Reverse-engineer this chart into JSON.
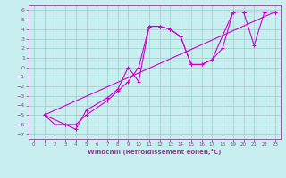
{
  "xlabel": "Windchill (Refroidissement éolien,°C)",
  "xlim": [
    -0.5,
    23.5
  ],
  "ylim": [
    -7.5,
    6.5
  ],
  "xticks": [
    0,
    1,
    2,
    3,
    4,
    5,
    6,
    7,
    8,
    9,
    10,
    11,
    12,
    13,
    14,
    15,
    16,
    17,
    18,
    19,
    20,
    21,
    22,
    23
  ],
  "yticks": [
    -7,
    -6,
    -5,
    -4,
    -3,
    -2,
    -1,
    0,
    1,
    2,
    3,
    4,
    5,
    6
  ],
  "bg_color": "#c8eef0",
  "line_color": "#cc00cc",
  "grid_color": "#99cccc",
  "line1_x": [
    1,
    2,
    3,
    4,
    5,
    7,
    8,
    9,
    10,
    11,
    12,
    13,
    14,
    15,
    16,
    17,
    19,
    20,
    21,
    22,
    23
  ],
  "line1_y": [
    -5,
    -6,
    -6,
    -6,
    -5,
    -3.5,
    -2.5,
    -1.5,
    0,
    4.3,
    4.3,
    4.0,
    3.2,
    0.3,
    0.3,
    0.8,
    5.8,
    5.8,
    2.3,
    5.8,
    5.8
  ],
  "line2_x": [
    1,
    3,
    4,
    5,
    7,
    8,
    9,
    10,
    11,
    12,
    13,
    14,
    15,
    16,
    17,
    18,
    19,
    20,
    22,
    23
  ],
  "line2_y": [
    -5,
    -6,
    -6.5,
    -4.5,
    -3.2,
    -2.3,
    0,
    -1.5,
    4.3,
    4.3,
    4.0,
    3.2,
    0.3,
    0.3,
    0.8,
    2.0,
    5.8,
    5.8,
    5.8,
    5.8
  ],
  "line3_x": [
    1,
    23
  ],
  "line3_y": [
    -5,
    5.8
  ]
}
